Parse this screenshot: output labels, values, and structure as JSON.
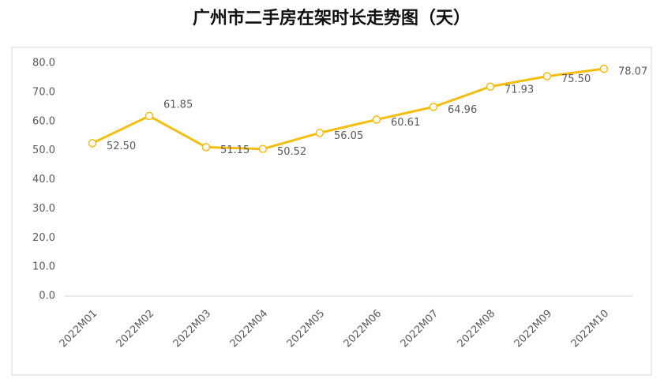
{
  "chart_data": {
    "type": "line",
    "title": "广州市二手房在架时长走势图（天）",
    "categories": [
      "2022M01",
      "2022M02",
      "2022M03",
      "2022M04",
      "2022M05",
      "2022M06",
      "2022M07",
      "2022M08",
      "2022M09",
      "2022M10"
    ],
    "values": [
      52.5,
      61.85,
      51.15,
      50.52,
      56.05,
      60.61,
      64.96,
      71.93,
      75.5,
      78.07
    ],
    "value_labels": [
      "52.50",
      "61.85",
      "51.15",
      "50.52",
      "56.05",
      "60.61",
      "64.96",
      "71.93",
      "75.50",
      "78.07"
    ],
    "color": "#f5bd0c",
    "ylim": [
      0,
      80
    ],
    "yticks": [
      {
        "value": 0,
        "label": "0.0"
      },
      {
        "value": 10,
        "label": "10.0"
      },
      {
        "value": 20,
        "label": "20.0"
      },
      {
        "value": 30,
        "label": "30.0"
      },
      {
        "value": 40,
        "label": "40.0"
      },
      {
        "value": 50,
        "label": "50.0"
      },
      {
        "value": 60,
        "label": "60.0"
      },
      {
        "value": 70,
        "label": "70.0"
      },
      {
        "value": 80,
        "label": "80.0"
      }
    ],
    "grid": false
  }
}
